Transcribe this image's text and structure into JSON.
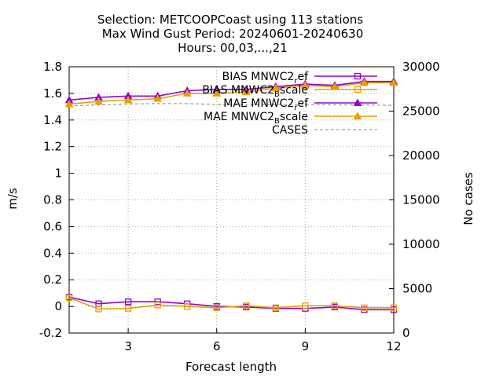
{
  "chart_data": {
    "type": "line",
    "title_lines": [
      "Selection: METCOOPCoast using   113 stations",
      "Max Wind Gust   Period: 20240601-20240630",
      "Hours: 00,03,...,21"
    ],
    "xlabel": "Forecast length",
    "ylabel": "m/s",
    "y2label": "No cases",
    "xlim": [
      1,
      12
    ],
    "ylim": [
      -0.2,
      1.8
    ],
    "y2lim": [
      0,
      30000
    ],
    "xticks": [
      3,
      6,
      9,
      12
    ],
    "yticks": [
      -0.2,
      0,
      0.2,
      0.4,
      0.6,
      0.8,
      1,
      1.2,
      1.4,
      1.6,
      1.8
    ],
    "y2ticks": [
      0,
      5000,
      10000,
      15000,
      20000,
      25000,
      30000
    ],
    "x": [
      1,
      2,
      3,
      4,
      5,
      6,
      7,
      8,
      9,
      10,
      11,
      12
    ],
    "grid": true,
    "legend_position": "top-right",
    "series": [
      {
        "legend_base": "BIAS MNWC2",
        "legend_sub": "r",
        "legend_suffix": "ef",
        "color": "#9400d3",
        "marker": "square",
        "axis": "y",
        "values": [
          0.07,
          0.02,
          0.035,
          0.035,
          0.02,
          0.0,
          -0.005,
          -0.015,
          -0.015,
          -0.005,
          -0.025,
          -0.025
        ]
      },
      {
        "legend_base": "BIAS MNWC2",
        "legend_sub": "B",
        "legend_suffix": "scale",
        "color": "#e69f00",
        "marker": "square",
        "axis": "y",
        "values": [
          0.065,
          -0.02,
          -0.015,
          0.01,
          0.0,
          -0.01,
          0.005,
          -0.01,
          0.005,
          0.005,
          -0.01,
          -0.01
        ]
      },
      {
        "legend_base": "MAE MNWC2",
        "legend_sub": "r",
        "legend_suffix": "ef",
        "color": "#9400d3",
        "marker": "triangle",
        "axis": "y",
        "values": [
          1.55,
          1.57,
          1.58,
          1.58,
          1.62,
          1.63,
          1.63,
          1.65,
          1.67,
          1.66,
          1.69,
          1.69
        ]
      },
      {
        "legend_base": "MAE MNWC2",
        "legend_sub": "B",
        "legend_suffix": "scale",
        "color": "#e69f00",
        "marker": "triangle",
        "axis": "y",
        "values": [
          1.52,
          1.54,
          1.55,
          1.56,
          1.6,
          1.6,
          1.61,
          1.64,
          1.66,
          1.65,
          1.68,
          1.68
        ]
      },
      {
        "legend_base": "CASES",
        "legend_sub": "",
        "legend_suffix": "",
        "color": "#a0a0a0",
        "marker": "none",
        "dashed": true,
        "axis": "y2",
        "values": [
          25600,
          25700,
          25800,
          25850,
          25850,
          25750,
          25700,
          25750,
          25750,
          25700,
          25700,
          25650
        ]
      }
    ]
  }
}
